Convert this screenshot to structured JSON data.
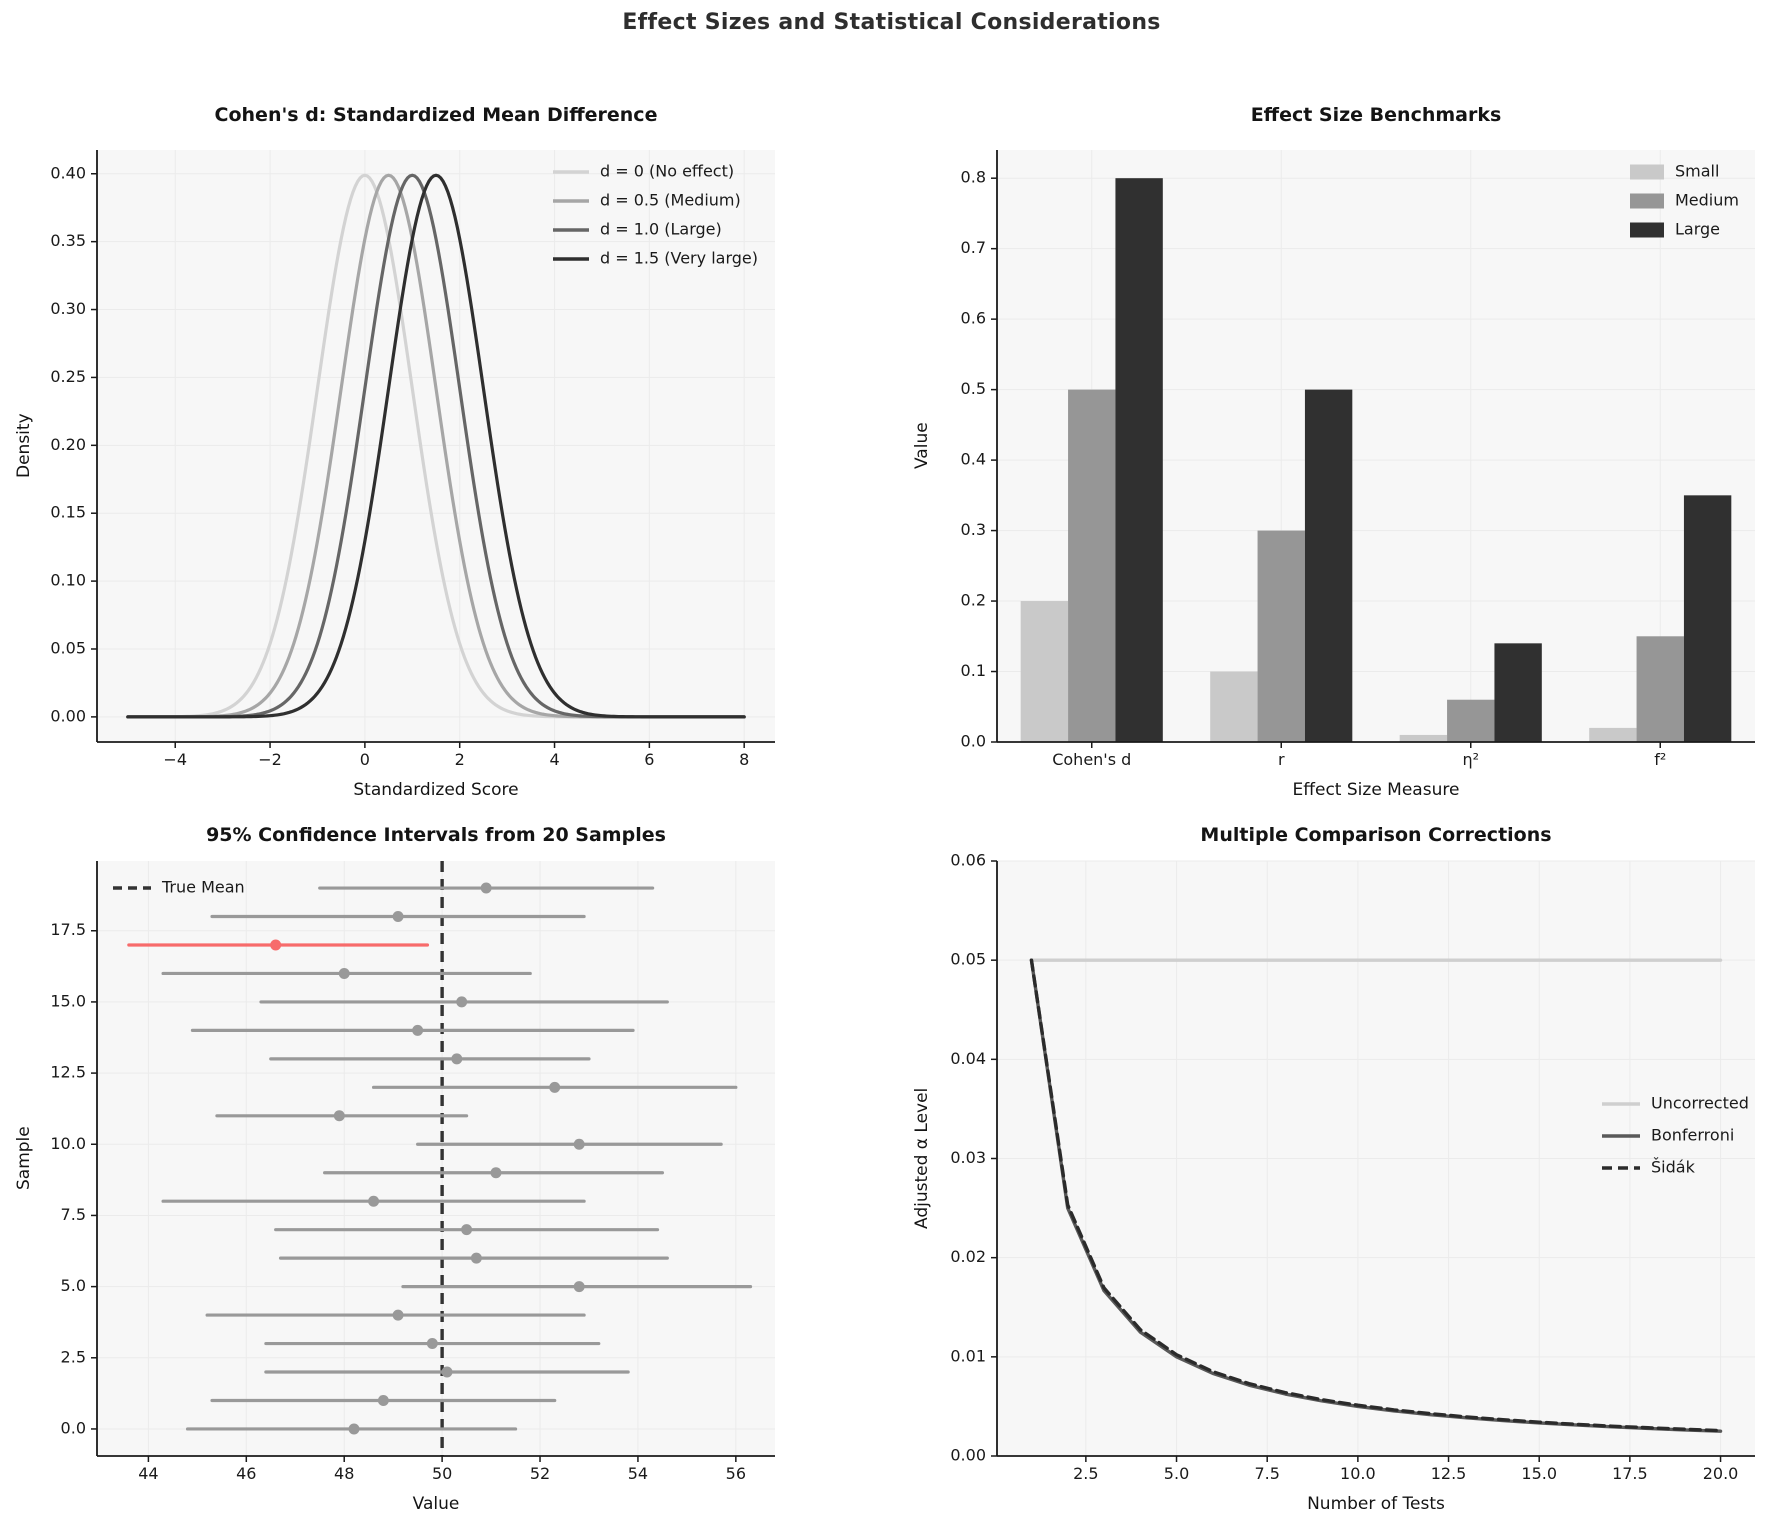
{
  "figure": {
    "title": "Effect Sizes and Statistical Considerations",
    "background": "#ffffff",
    "plot_background": "#f7f7f7",
    "grid_color": "#ebebeb",
    "spine_color": "#1a1a1a",
    "text_color": "#1a1a1a"
  },
  "chart_data": [
    {
      "id": "cohens-d",
      "type": "gauss",
      "title": "Cohen's d: Standardized Mean Difference",
      "xlabel": "Standardized Score",
      "ylabel": "Density",
      "xlim": [
        -5.65,
        8.65
      ],
      "ylim": [
        -0.0185,
        0.4175
      ],
      "x_range": [
        -5,
        8
      ],
      "sigma": 1,
      "peak": 0.3989,
      "xticks": [
        -4,
        -2,
        0,
        2,
        4,
        6,
        8
      ],
      "xtick_labels": [
        "−4",
        "−2",
        "0",
        "2",
        "4",
        "6",
        "8"
      ],
      "yticks": [
        0,
        0.05,
        0.1,
        0.15,
        0.2,
        0.25,
        0.3,
        0.35,
        0.4
      ],
      "ytick_labels": [
        "0.00",
        "0.05",
        "0.10",
        "0.15",
        "0.20",
        "0.25",
        "0.30",
        "0.35",
        "0.40"
      ],
      "legend_position": "top-right",
      "series": [
        {
          "name": "d = 0 (No effect)",
          "mean": 0,
          "color": "#d3d3d3"
        },
        {
          "name": "d = 0.5 (Medium)",
          "mean": 0.5,
          "color": "#a6a6a6"
        },
        {
          "name": "d = 1.0 (Large)",
          "mean": 1.0,
          "color": "#666666"
        },
        {
          "name": "d = 1.5 (Very large)",
          "mean": 1.5,
          "color": "#2f2f2f"
        }
      ]
    },
    {
      "id": "benchmarks",
      "type": "bar",
      "title": "Effect Size Benchmarks",
      "xlabel": "Effect Size Measure",
      "ylabel": "Value",
      "categories": [
        "Cohen's d",
        "r",
        "η²",
        "f²"
      ],
      "xlim": [
        -0.5,
        3.5
      ],
      "ylim": [
        0,
        0.84
      ],
      "yticks": [
        0,
        0.1,
        0.2,
        0.3,
        0.4,
        0.5,
        0.6,
        0.7,
        0.8
      ],
      "ytick_labels": [
        "0.0",
        "0.1",
        "0.2",
        "0.3",
        "0.4",
        "0.5",
        "0.6",
        "0.7",
        "0.8"
      ],
      "bar_width": 0.25,
      "legend_position": "top-right",
      "series": [
        {
          "name": "Small",
          "color": "#c9c9c9",
          "values": [
            0.2,
            0.1,
            0.01,
            0.02
          ]
        },
        {
          "name": "Medium",
          "color": "#969696",
          "values": [
            0.5,
            0.3,
            0.06,
            0.15
          ]
        },
        {
          "name": "Large",
          "color": "#303030",
          "values": [
            0.8,
            0.5,
            0.14,
            0.35
          ]
        }
      ]
    },
    {
      "id": "confidence-intervals",
      "type": "errorbar",
      "title": "95% Confidence Intervals from 20 Samples",
      "xlabel": "Value",
      "ylabel": "Sample",
      "true_mean": 50,
      "true_mean_label": "True Mean",
      "xlim": [
        42.95,
        56.8
      ],
      "ylim": [
        -0.95,
        19.95
      ],
      "xticks": [
        44,
        46,
        48,
        50,
        52,
        54,
        56
      ],
      "xtick_labels": [
        "44",
        "46",
        "48",
        "50",
        "52",
        "54",
        "56"
      ],
      "yticks": [
        0,
        2.5,
        5,
        7.5,
        10,
        12.5,
        15,
        17.5
      ],
      "ytick_labels": [
        "0.0",
        "2.5",
        "5.0",
        "7.5",
        "10.0",
        "12.5",
        "15.0",
        "17.5"
      ],
      "colors": {
        "normal": "#999999",
        "outlier": "#f76b6b",
        "true_mean": "#333333"
      },
      "samples": [
        {
          "sample": 0,
          "mean": 48.2,
          "lo": 44.8,
          "hi": 51.5,
          "outlier": false
        },
        {
          "sample": 1,
          "mean": 48.8,
          "lo": 45.3,
          "hi": 52.3,
          "outlier": false
        },
        {
          "sample": 2,
          "mean": 50.1,
          "lo": 46.4,
          "hi": 53.8,
          "outlier": false
        },
        {
          "sample": 3,
          "mean": 49.8,
          "lo": 46.4,
          "hi": 53.2,
          "outlier": false
        },
        {
          "sample": 4,
          "mean": 49.1,
          "lo": 45.2,
          "hi": 52.9,
          "outlier": false
        },
        {
          "sample": 5,
          "mean": 52.8,
          "lo": 49.2,
          "hi": 56.3,
          "outlier": false
        },
        {
          "sample": 6,
          "mean": 50.7,
          "lo": 46.7,
          "hi": 54.6,
          "outlier": false
        },
        {
          "sample": 7,
          "mean": 50.5,
          "lo": 46.6,
          "hi": 54.4,
          "outlier": false
        },
        {
          "sample": 8,
          "mean": 48.6,
          "lo": 44.3,
          "hi": 52.9,
          "outlier": false
        },
        {
          "sample": 9,
          "mean": 51.1,
          "lo": 47.6,
          "hi": 54.5,
          "outlier": false
        },
        {
          "sample": 10,
          "mean": 52.8,
          "lo": 49.5,
          "hi": 55.7,
          "outlier": false
        },
        {
          "sample": 11,
          "mean": 47.9,
          "lo": 45.4,
          "hi": 50.5,
          "outlier": false
        },
        {
          "sample": 12,
          "mean": 52.3,
          "lo": 48.6,
          "hi": 56.0,
          "outlier": false
        },
        {
          "sample": 13,
          "mean": 50.3,
          "lo": 46.5,
          "hi": 53.0,
          "outlier": false
        },
        {
          "sample": 14,
          "mean": 49.5,
          "lo": 44.9,
          "hi": 53.9,
          "outlier": false
        },
        {
          "sample": 15,
          "mean": 50.4,
          "lo": 46.3,
          "hi": 54.6,
          "outlier": false
        },
        {
          "sample": 16,
          "mean": 48.0,
          "lo": 44.3,
          "hi": 51.8,
          "outlier": false
        },
        {
          "sample": 17,
          "mean": 46.6,
          "lo": 43.6,
          "hi": 49.7,
          "outlier": true
        },
        {
          "sample": 18,
          "mean": 49.1,
          "lo": 45.3,
          "hi": 52.9,
          "outlier": false
        },
        {
          "sample": 19,
          "mean": 50.9,
          "lo": 47.5,
          "hi": 54.3,
          "outlier": false
        }
      ]
    },
    {
      "id": "corrections",
      "type": "multiline",
      "title": "Multiple Comparison Corrections",
      "xlabel": "Number of Tests",
      "ylabel": "Adjusted α Level",
      "xlim": [
        0.05,
        20.95
      ],
      "ylim": [
        0,
        0.06
      ],
      "x": [
        1,
        2,
        3,
        4,
        5,
        6,
        7,
        8,
        9,
        10,
        11,
        12,
        13,
        14,
        15,
        16,
        17,
        18,
        19,
        20
      ],
      "xticks": [
        2.5,
        5,
        7.5,
        10,
        12.5,
        15,
        17.5,
        20
      ],
      "xtick_labels": [
        "2.5",
        "5.0",
        "7.5",
        "10.0",
        "12.5",
        "15.0",
        "17.5",
        "20.0"
      ],
      "yticks": [
        0,
        0.01,
        0.02,
        0.03,
        0.04,
        0.05,
        0.06
      ],
      "ytick_labels": [
        "0.00",
        "0.01",
        "0.02",
        "0.03",
        "0.04",
        "0.05",
        "0.06"
      ],
      "legend_position": "right",
      "series": [
        {
          "name": "Uncorrected",
          "color": "#cfcfcf",
          "dash": null,
          "values": [
            0.05,
            0.05,
            0.05,
            0.05,
            0.05,
            0.05,
            0.05,
            0.05,
            0.05,
            0.05,
            0.05,
            0.05,
            0.05,
            0.05,
            0.05,
            0.05,
            0.05,
            0.05,
            0.05,
            0.05
          ]
        },
        {
          "name": "Bonferroni",
          "color": "#595959",
          "dash": null,
          "values": [
            0.05,
            0.025,
            0.01667,
            0.0125,
            0.01,
            0.00833,
            0.00714,
            0.00625,
            0.00556,
            0.005,
            0.00455,
            0.00417,
            0.00385,
            0.00357,
            0.00333,
            0.00313,
            0.00294,
            0.00278,
            0.00263,
            0.0025
          ]
        },
        {
          "name": "Šidák",
          "color": "#2b2b2b",
          "dash": "10 6",
          "values": [
            0.05,
            0.02532,
            0.01695,
            0.01274,
            0.01021,
            0.00851,
            0.0073,
            0.00639,
            0.00568,
            0.00512,
            0.00465,
            0.00427,
            0.00394,
            0.00366,
            0.00341,
            0.0032,
            0.00301,
            0.00285,
            0.0027,
            0.00256
          ]
        }
      ]
    }
  ]
}
